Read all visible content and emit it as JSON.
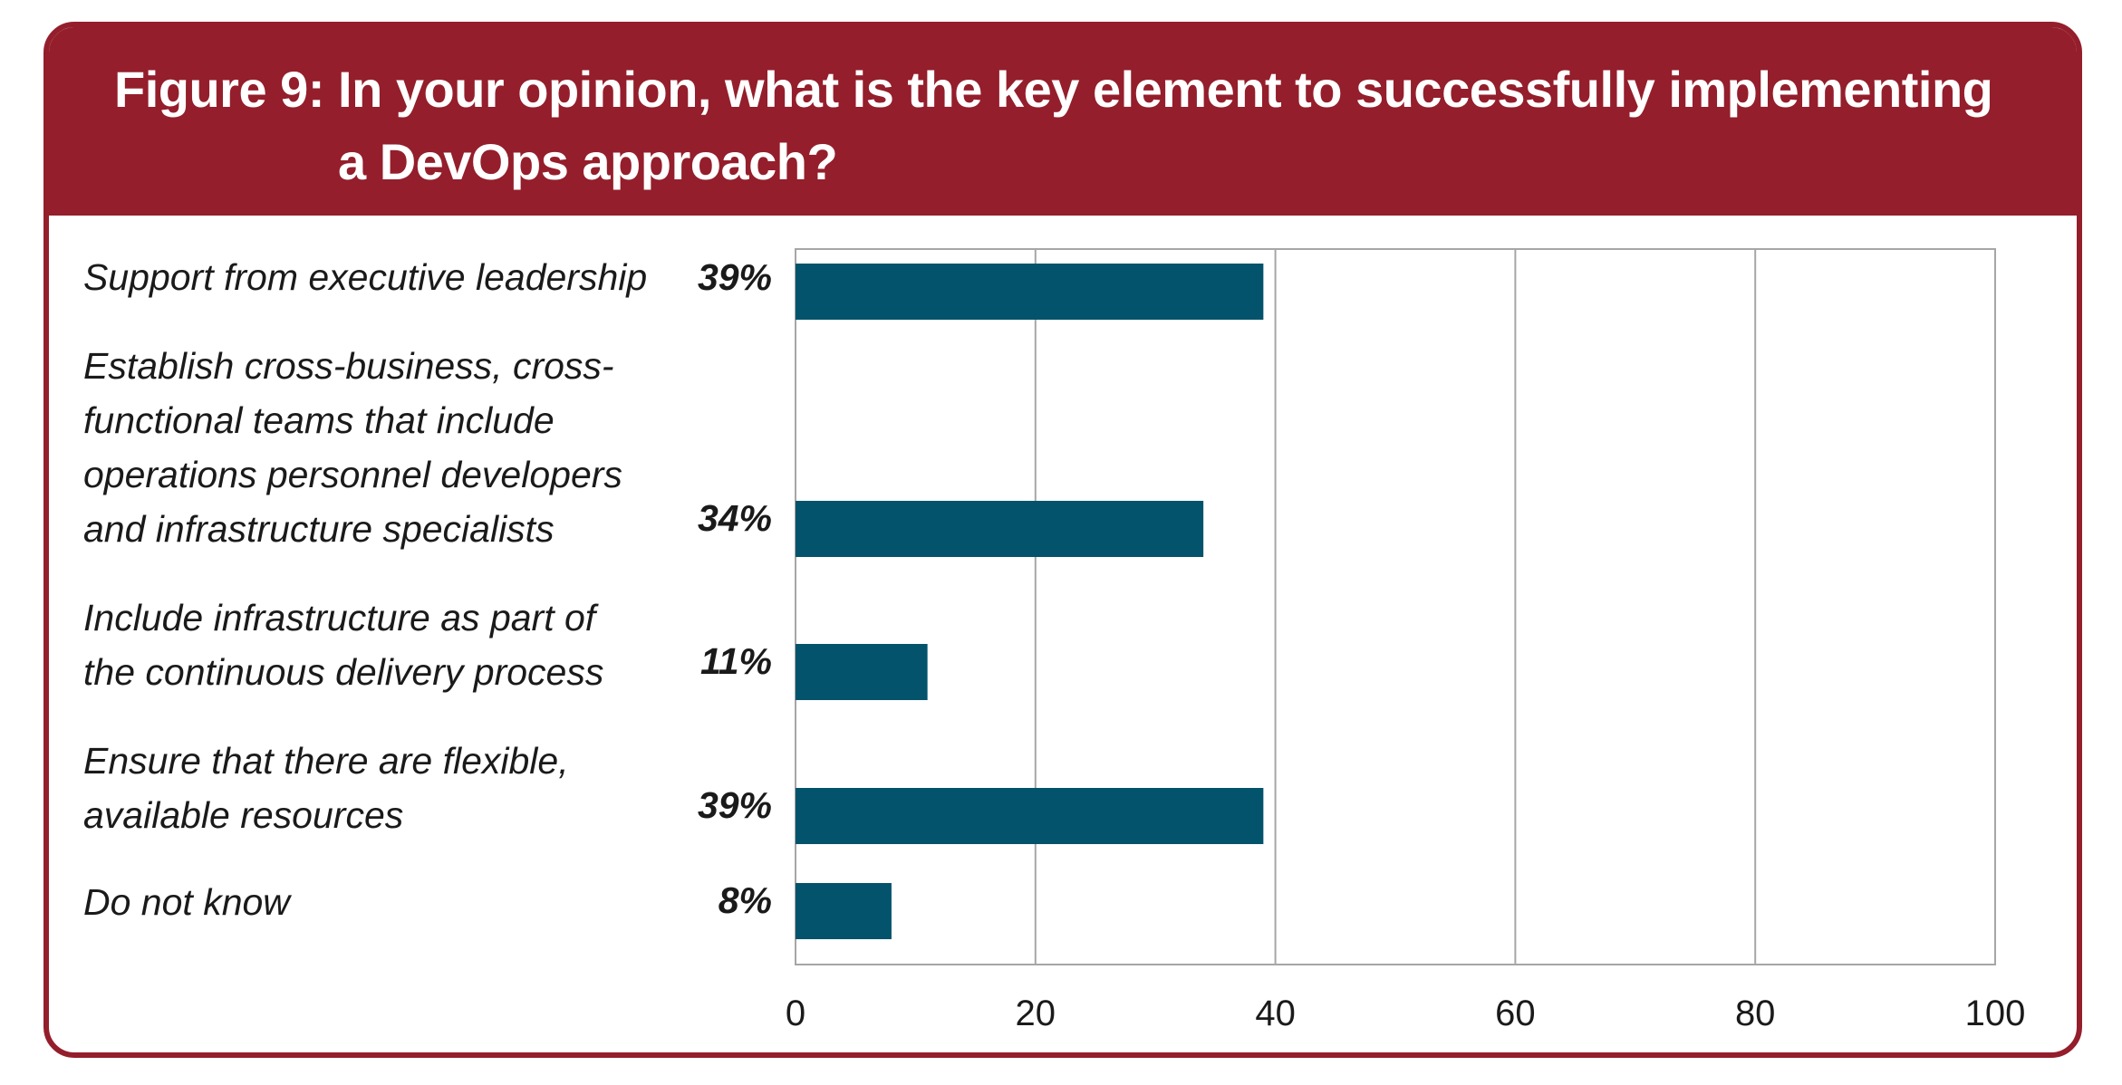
{
  "title_lines": [
    "Figure 9: In your opinion, what is the key element to successfully implementing",
    "a DevOps approach?"
  ],
  "colors": {
    "header": "#941e2b",
    "bar": "#02536b",
    "grid": "#a6a6a6"
  },
  "chart_data": {
    "type": "bar",
    "orientation": "horizontal",
    "title": "Figure 9: In your opinion, what is the key element to successfully implementing a DevOps approach?",
    "categories": [
      "Support from executive leadership",
      "Establish cross-business, cross-functional teams that include operations personnel developers and infrastructure specialists",
      "Include infrastructure as part of the continuous delivery process",
      "Ensure that there are flexible, available resources",
      "Do not know"
    ],
    "category_label_lines": [
      [
        "Support from executive leadership"
      ],
      [
        "Establish cross-business, cross-",
        "functional teams that include",
        "operations personnel developers",
        "and infrastructure specialists"
      ],
      [
        "Include infrastructure as part of",
        "the continuous delivery process"
      ],
      [
        "Ensure that there are flexible,",
        "available resources"
      ],
      [
        "Do not know"
      ]
    ],
    "values": [
      39,
      34,
      11,
      39,
      8
    ],
    "value_labels": [
      "39%",
      "34%",
      "11%",
      "39%",
      "8%"
    ],
    "xlim": [
      0,
      100
    ],
    "xticks": [
      0,
      20,
      40,
      60,
      80,
      100
    ],
    "grid": true,
    "xlabel": "",
    "ylabel": ""
  }
}
